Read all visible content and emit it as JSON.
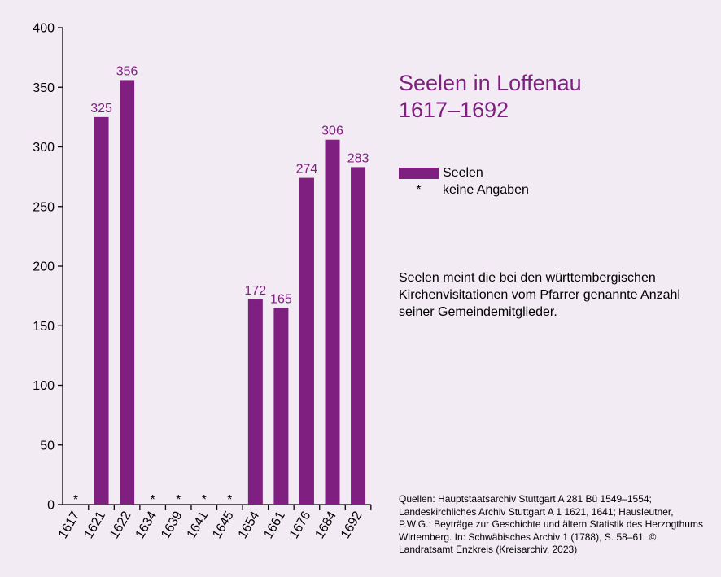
{
  "title_line1": "Seelen in Loffenau",
  "title_line2": "1617–1692",
  "legend": {
    "series_label": "Seelen",
    "missing_symbol": "*",
    "missing_label": "keine Angaben"
  },
  "note": "Seelen meint die bei den württembergischen Kirchenvisitationen vom Pfarrer genannte Anzahl seiner Gemeindemitglieder.",
  "sources": "Quellen: Hauptstaatsarchiv Stuttgart A 281 Bü 1549–1554; Landeskirchliches Archiv Stuttgart A 1 1621, 1641; Hausleutner, P.W.G.: Beyträge zur Geschichte und ältern Statistik des Herzogthums Wirtemberg. In: Schwäbisches Archiv 1 (1788), S. 58–61. © Landratsamt Enzkreis (Kreisarchiv, 2023)",
  "colors": {
    "bar": "#7f1f80",
    "label": "#7f1f80",
    "background": "#f3ebf4"
  },
  "chart_data": {
    "type": "bar",
    "categories": [
      "1617",
      "1621",
      "1622",
      "1634",
      "1639",
      "1641",
      "1645",
      "1654",
      "1661",
      "1676",
      "1684",
      "1692"
    ],
    "values": [
      null,
      325,
      356,
      null,
      null,
      null,
      null,
      172,
      165,
      274,
      306,
      283
    ],
    "value_labels": [
      "*",
      "325",
      "356",
      "*",
      "*",
      "*",
      "*",
      "172",
      "165",
      "274",
      "306",
      "283"
    ],
    "ylim": [
      0,
      400
    ],
    "yticks": [
      0,
      50,
      100,
      150,
      200,
      250,
      300,
      350,
      400
    ],
    "xlabel": "",
    "ylabel": "",
    "grid": false,
    "legend_position": "right"
  }
}
